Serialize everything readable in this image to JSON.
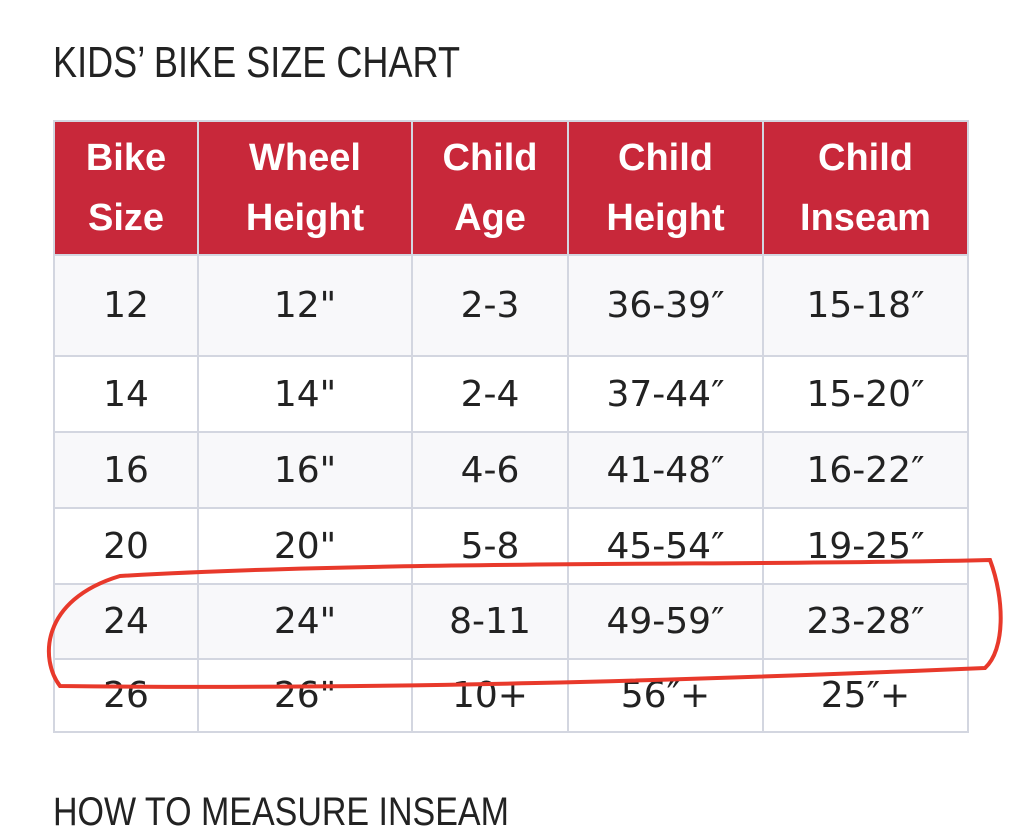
{
  "header": {
    "title": "KIDS’ BIKE SIZE CHART"
  },
  "table": {
    "columns": [
      [
        "Bike",
        "Size"
      ],
      [
        "Wheel",
        "Height"
      ],
      [
        "Child",
        "Age"
      ],
      [
        "Child",
        "Height"
      ],
      [
        "Child",
        "Inseam"
      ]
    ],
    "rows": [
      [
        "12",
        "12\"",
        "2-3",
        "36-39″",
        "15-18″"
      ],
      [
        "14",
        "14\"",
        "2-4",
        "37-44″",
        "15-20″"
      ],
      [
        "16",
        "16\"",
        "4-6",
        "41-48″",
        "16-22″"
      ],
      [
        "20",
        "20\"",
        "5-8",
        "45-54″",
        "19-25″"
      ],
      [
        "24",
        "24\"",
        "8-11",
        "49-59″",
        "23-28″"
      ],
      [
        "26",
        "26\"",
        "10+",
        "56″+",
        "25″+"
      ]
    ]
  },
  "footer": {
    "heading": "HOW TO MEASURE INSEAM"
  }
}
